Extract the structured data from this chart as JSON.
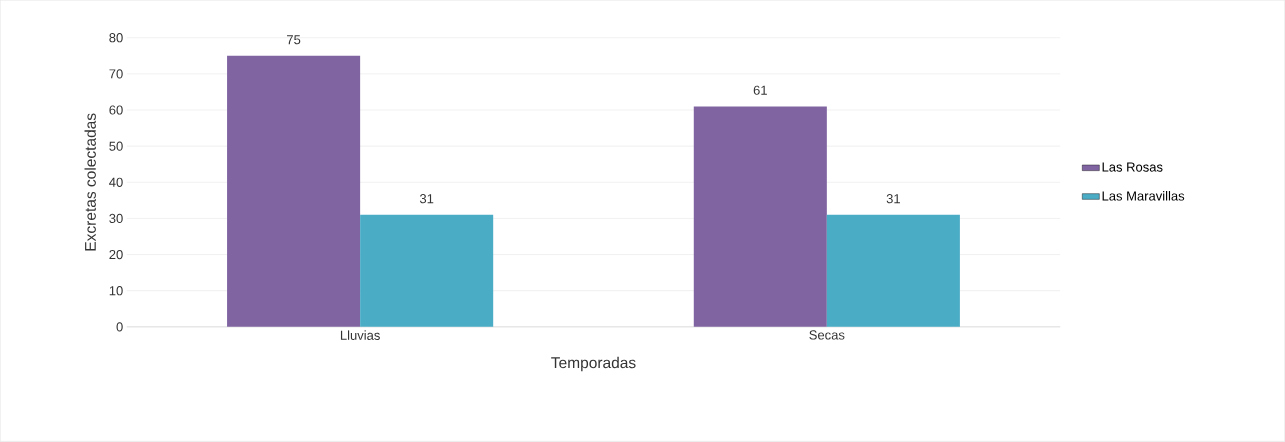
{
  "chart_data": {
    "type": "bar",
    "xlabel": "Temporadas",
    "ylabel": "Excretas colectadas",
    "categories": [
      "Lluvias",
      "Secas"
    ],
    "series": [
      {
        "name": "Las Rosas",
        "color": "#8064a2",
        "values": [
          75,
          61
        ]
      },
      {
        "name": "Las Maravillas",
        "color": "#4bacc6",
        "values": [
          31,
          31
        ]
      }
    ],
    "ylim": [
      0,
      80
    ],
    "yticks": [
      0,
      10,
      20,
      30,
      40,
      50,
      60,
      70,
      80
    ],
    "grid": "y",
    "legend": "right",
    "data_labels": true
  }
}
